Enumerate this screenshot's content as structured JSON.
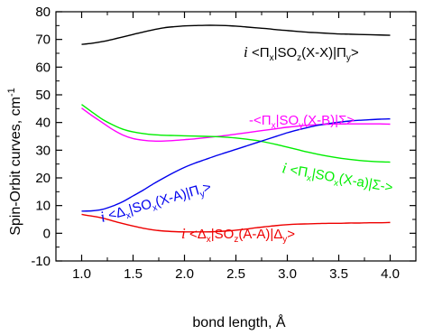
{
  "chart_data": {
    "type": "line",
    "xlabel": "bond length, Å",
    "ylabel": "Spin-Orbit curves, cm",
    "ylabel_sup": "-1",
    "xlim": [
      0.75,
      4.25
    ],
    "ylim": [
      -10,
      80
    ],
    "xticks": [
      1.0,
      1.5,
      2.0,
      2.5,
      3.0,
      3.5,
      4.0
    ],
    "xtick_labels": [
      "1.0",
      "1.5",
      "2.0",
      "2.5",
      "3.0",
      "3.5",
      "4.0"
    ],
    "yticks": [
      -10,
      0,
      10,
      20,
      30,
      40,
      50,
      60,
      70,
      80
    ],
    "ytick_labels": [
      "-10",
      "0",
      "10",
      "20",
      "30",
      "40",
      "50",
      "60",
      "70",
      "80"
    ],
    "x": [
      1.0,
      1.1,
      1.2,
      1.3,
      1.4,
      1.5,
      1.6,
      1.7,
      1.8,
      1.9,
      2.0,
      2.1,
      2.2,
      2.3,
      2.4,
      2.5,
      2.6,
      2.7,
      2.8,
      2.9,
      3.0,
      3.1,
      3.2,
      3.3,
      3.4,
      3.5,
      3.6,
      3.7,
      3.8,
      3.9,
      4.0
    ],
    "series": [
      {
        "color": "#000000",
        "values": [
          68.2,
          68.6,
          69.2,
          70.0,
          70.9,
          71.8,
          72.7,
          73.5,
          74.2,
          74.6,
          74.9,
          75.0,
          75.1,
          75.1,
          75.0,
          74.8,
          74.5,
          74.2,
          73.9,
          73.5,
          73.2,
          72.9,
          72.6,
          72.4,
          72.2,
          72.0,
          71.9,
          71.8,
          71.7,
          71.6,
          71.5
        ]
      },
      {
        "color": "#ff00ff",
        "values": [
          45.2,
          42.5,
          40.0,
          37.5,
          35.5,
          34.2,
          33.6,
          33.3,
          33.3,
          33.5,
          33.8,
          34.1,
          34.5,
          34.9,
          35.3,
          35.8,
          36.3,
          36.8,
          37.3,
          37.8,
          38.3,
          38.7,
          39.0,
          39.2,
          39.4,
          39.5,
          39.5,
          39.5,
          39.5,
          39.5,
          39.4
        ]
      },
      {
        "color": "#00ee00",
        "values": [
          46.5,
          43.8,
          41.2,
          39.2,
          37.6,
          36.6,
          36.0,
          35.6,
          35.4,
          35.3,
          35.2,
          35.1,
          35.0,
          34.9,
          34.7,
          34.4,
          34.0,
          33.5,
          32.8,
          32.0,
          31.1,
          30.2,
          29.3,
          28.5,
          27.8,
          27.2,
          26.7,
          26.3,
          26.0,
          25.8,
          25.7
        ]
      },
      {
        "color": "#0000ee",
        "values": [
          8.0,
          8.1,
          8.6,
          9.8,
          11.4,
          13.5,
          15.6,
          17.9,
          20.0,
          22.0,
          23.8,
          25.3,
          26.6,
          27.9,
          29.1,
          30.3,
          31.5,
          32.7,
          33.9,
          35.1,
          36.3,
          37.3,
          38.2,
          39.0,
          39.6,
          40.1,
          40.5,
          40.8,
          41.0,
          41.2,
          41.3
        ]
      },
      {
        "color": "#ee0000",
        "values": [
          6.8,
          6.2,
          5.5,
          4.5,
          3.5,
          2.6,
          1.8,
          1.2,
          0.8,
          0.6,
          0.5,
          0.5,
          0.5,
          0.6,
          0.8,
          1.1,
          1.5,
          2.0,
          2.4,
          2.8,
          3.1,
          3.3,
          3.4,
          3.5,
          3.6,
          3.6,
          3.7,
          3.7,
          3.8,
          3.8,
          3.9
        ]
      }
    ],
    "annotations": [
      {
        "color": "#000000",
        "prefix": "i",
        "parts": [
          [
            "t",
            "<Π"
          ],
          [
            "s",
            "x"
          ],
          [
            "t",
            "|SO"
          ],
          [
            "s",
            "z"
          ],
          [
            "t",
            "(X-X)|Π"
          ],
          [
            "s",
            "y"
          ],
          [
            "t",
            ">"
          ]
        ]
      },
      {
        "color": "#ff00ff",
        "prefix": "",
        "parts": [
          [
            "t",
            "-<Π"
          ],
          [
            "s",
            "x"
          ],
          [
            "t",
            "|SO"
          ],
          [
            "s",
            "y"
          ],
          [
            "t",
            "(X-B)|Σ>"
          ]
        ]
      },
      {
        "color": "#00ee00",
        "prefix": "i",
        "parts": [
          [
            "t",
            "<Π"
          ],
          [
            "s",
            "x"
          ],
          [
            "t",
            "|SO"
          ],
          [
            "s",
            "x"
          ],
          [
            "t",
            "(X-a)|Σ->"
          ]
        ]
      },
      {
        "color": "#0000ee",
        "prefix": "i",
        "parts": [
          [
            "t",
            "<Δ"
          ],
          [
            "s",
            "x"
          ],
          [
            "t",
            "|SO"
          ],
          [
            "s",
            "x"
          ],
          [
            "t",
            "(X-A)|Π"
          ],
          [
            "s",
            "y"
          ],
          [
            "t",
            ">"
          ]
        ]
      },
      {
        "color": "#ee0000",
        "prefix": "i",
        "parts": [
          [
            "t",
            "<Δ"
          ],
          [
            "s",
            "x"
          ],
          [
            "t",
            "|SO"
          ],
          [
            "s",
            "z"
          ],
          [
            "t",
            "(A-A)|Δ"
          ],
          [
            "s",
            "y"
          ],
          [
            "t",
            ">"
          ]
        ]
      }
    ],
    "grid": false,
    "legend": "none"
  }
}
